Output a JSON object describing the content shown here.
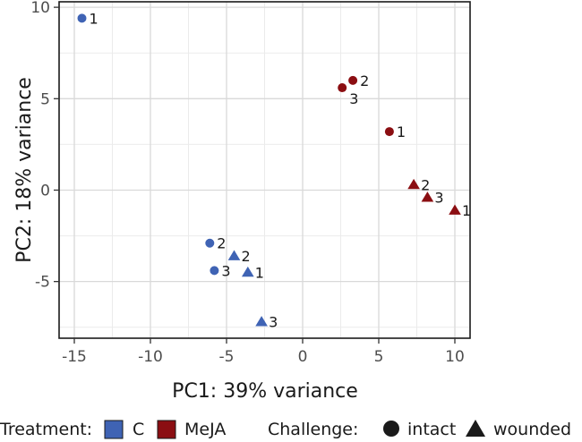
{
  "chart_data": {
    "type": "scatter",
    "xlabel": "PC1: 39% variance",
    "ylabel": "PC2: 18% variance",
    "xlim": [
      -16,
      11
    ],
    "ylim": [
      -8.1,
      10.3
    ],
    "xticks": [
      -15,
      -10,
      -5,
      0,
      5,
      10
    ],
    "yticks": [
      -5,
      0,
      5,
      10
    ],
    "grid": true,
    "legend_position": "bottom",
    "legend": {
      "treatment_title": "Treatment:",
      "treatments": [
        {
          "name": "C",
          "color": "#3F63B4"
        },
        {
          "name": "MeJA",
          "color": "#8B0E12"
        }
      ],
      "challenge_title": "Challenge:",
      "challenges": [
        {
          "name": "intact",
          "shape": "circle"
        },
        {
          "name": "wounded",
          "shape": "triangle"
        }
      ]
    },
    "points": [
      {
        "treatment": "C",
        "challenge": "intact",
        "label": "1",
        "x": -14.5,
        "y": 9.4
      },
      {
        "treatment": "C",
        "challenge": "intact",
        "label": "2",
        "x": -6.1,
        "y": -2.9
      },
      {
        "treatment": "C",
        "challenge": "intact",
        "label": "3",
        "x": -5.8,
        "y": -4.4
      },
      {
        "treatment": "C",
        "challenge": "wounded",
        "label": "1",
        "x": -3.6,
        "y": -4.5
      },
      {
        "treatment": "C",
        "challenge": "wounded",
        "label": "2",
        "x": -4.5,
        "y": -3.6
      },
      {
        "treatment": "C",
        "challenge": "wounded",
        "label": "3",
        "x": -2.7,
        "y": -7.2
      },
      {
        "treatment": "MeJA",
        "challenge": "intact",
        "label": "1",
        "x": 5.7,
        "y": 3.2
      },
      {
        "treatment": "MeJA",
        "challenge": "intact",
        "label": "2",
        "x": 3.3,
        "y": 6.0
      },
      {
        "treatment": "MeJA",
        "challenge": "intact",
        "label": "3",
        "x": 2.6,
        "y": 5.6
      },
      {
        "treatment": "MeJA",
        "challenge": "wounded",
        "label": "1",
        "x": 10.0,
        "y": -1.1
      },
      {
        "treatment": "MeJA",
        "challenge": "wounded",
        "label": "2",
        "x": 7.3,
        "y": 0.3
      },
      {
        "treatment": "MeJA",
        "challenge": "wounded",
        "label": "3",
        "x": 8.2,
        "y": -0.4
      }
    ]
  }
}
